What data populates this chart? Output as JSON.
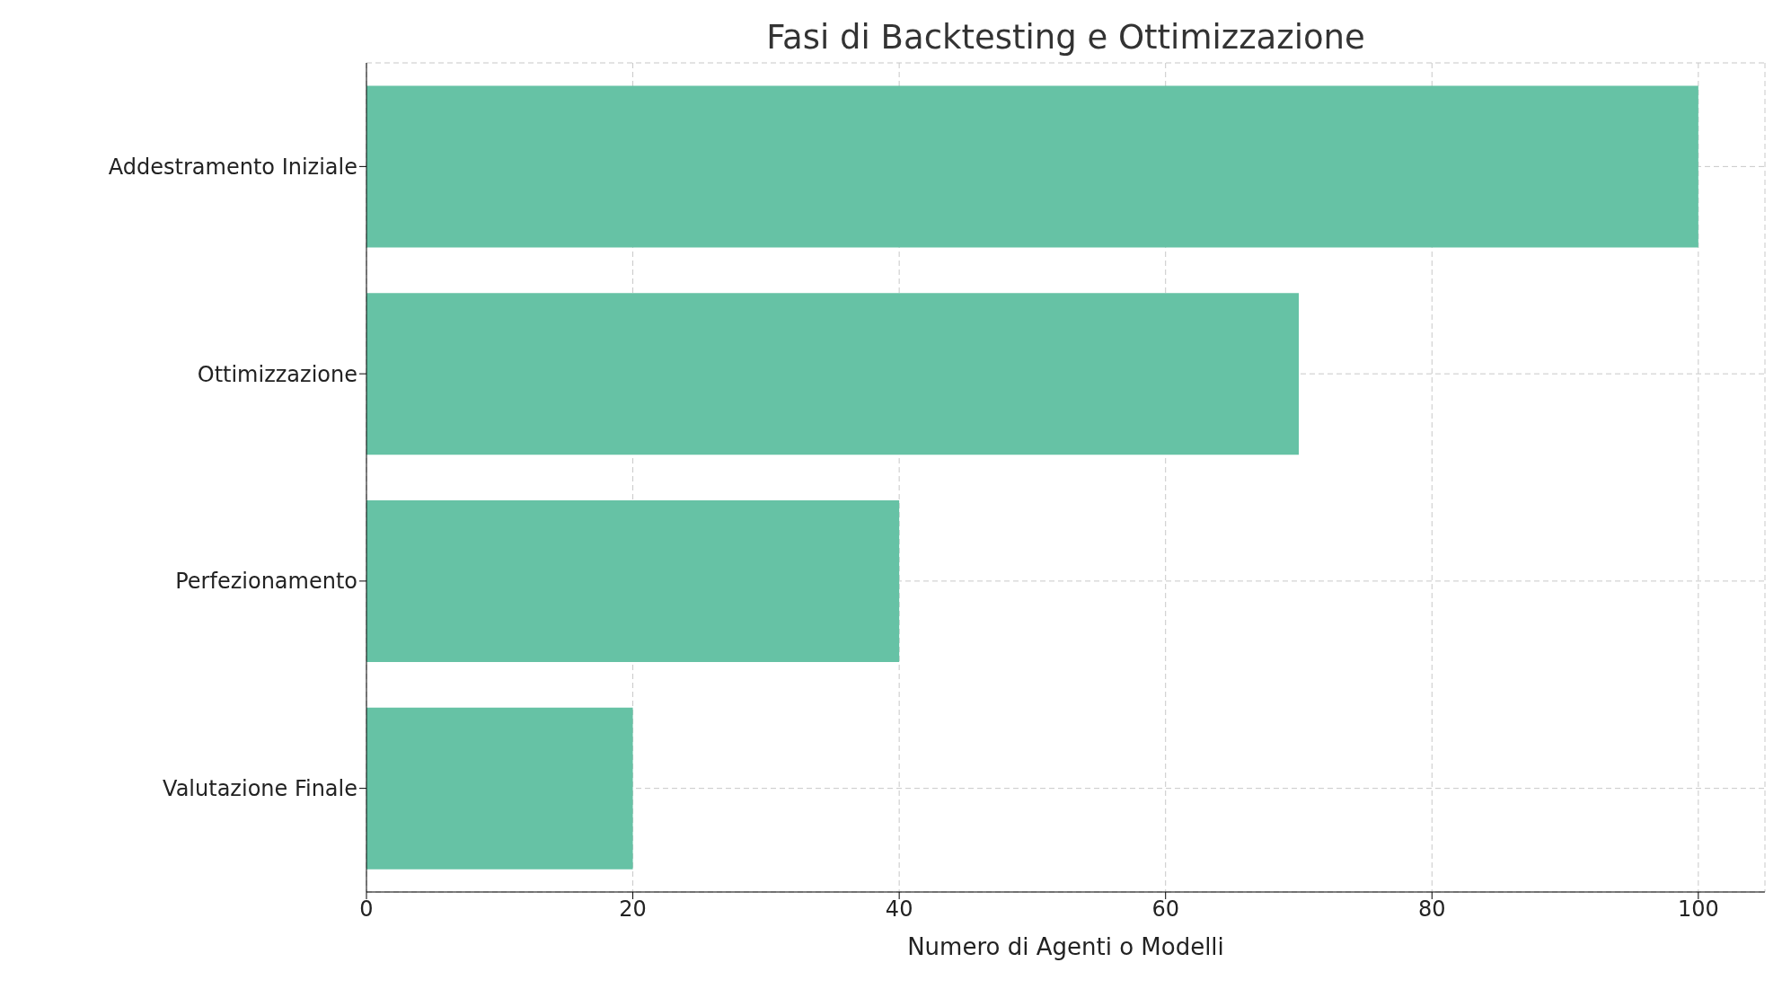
{
  "chart_data": {
    "type": "bar",
    "orientation": "horizontal",
    "title": "Fasi di Backtesting e Ottimizzazione",
    "xlabel": "Numero di Agenti o Modelli",
    "categories": [
      "Addestramento Iniziale",
      "Ottimizzazione",
      "Perfezionamento",
      "Valutazione Finale"
    ],
    "values": [
      100,
      70,
      40,
      20
    ],
    "color": "#66c2a5",
    "xlim": [
      0,
      105
    ],
    "xticks": [
      0,
      20,
      40,
      60,
      80,
      100
    ],
    "grid": true
  }
}
